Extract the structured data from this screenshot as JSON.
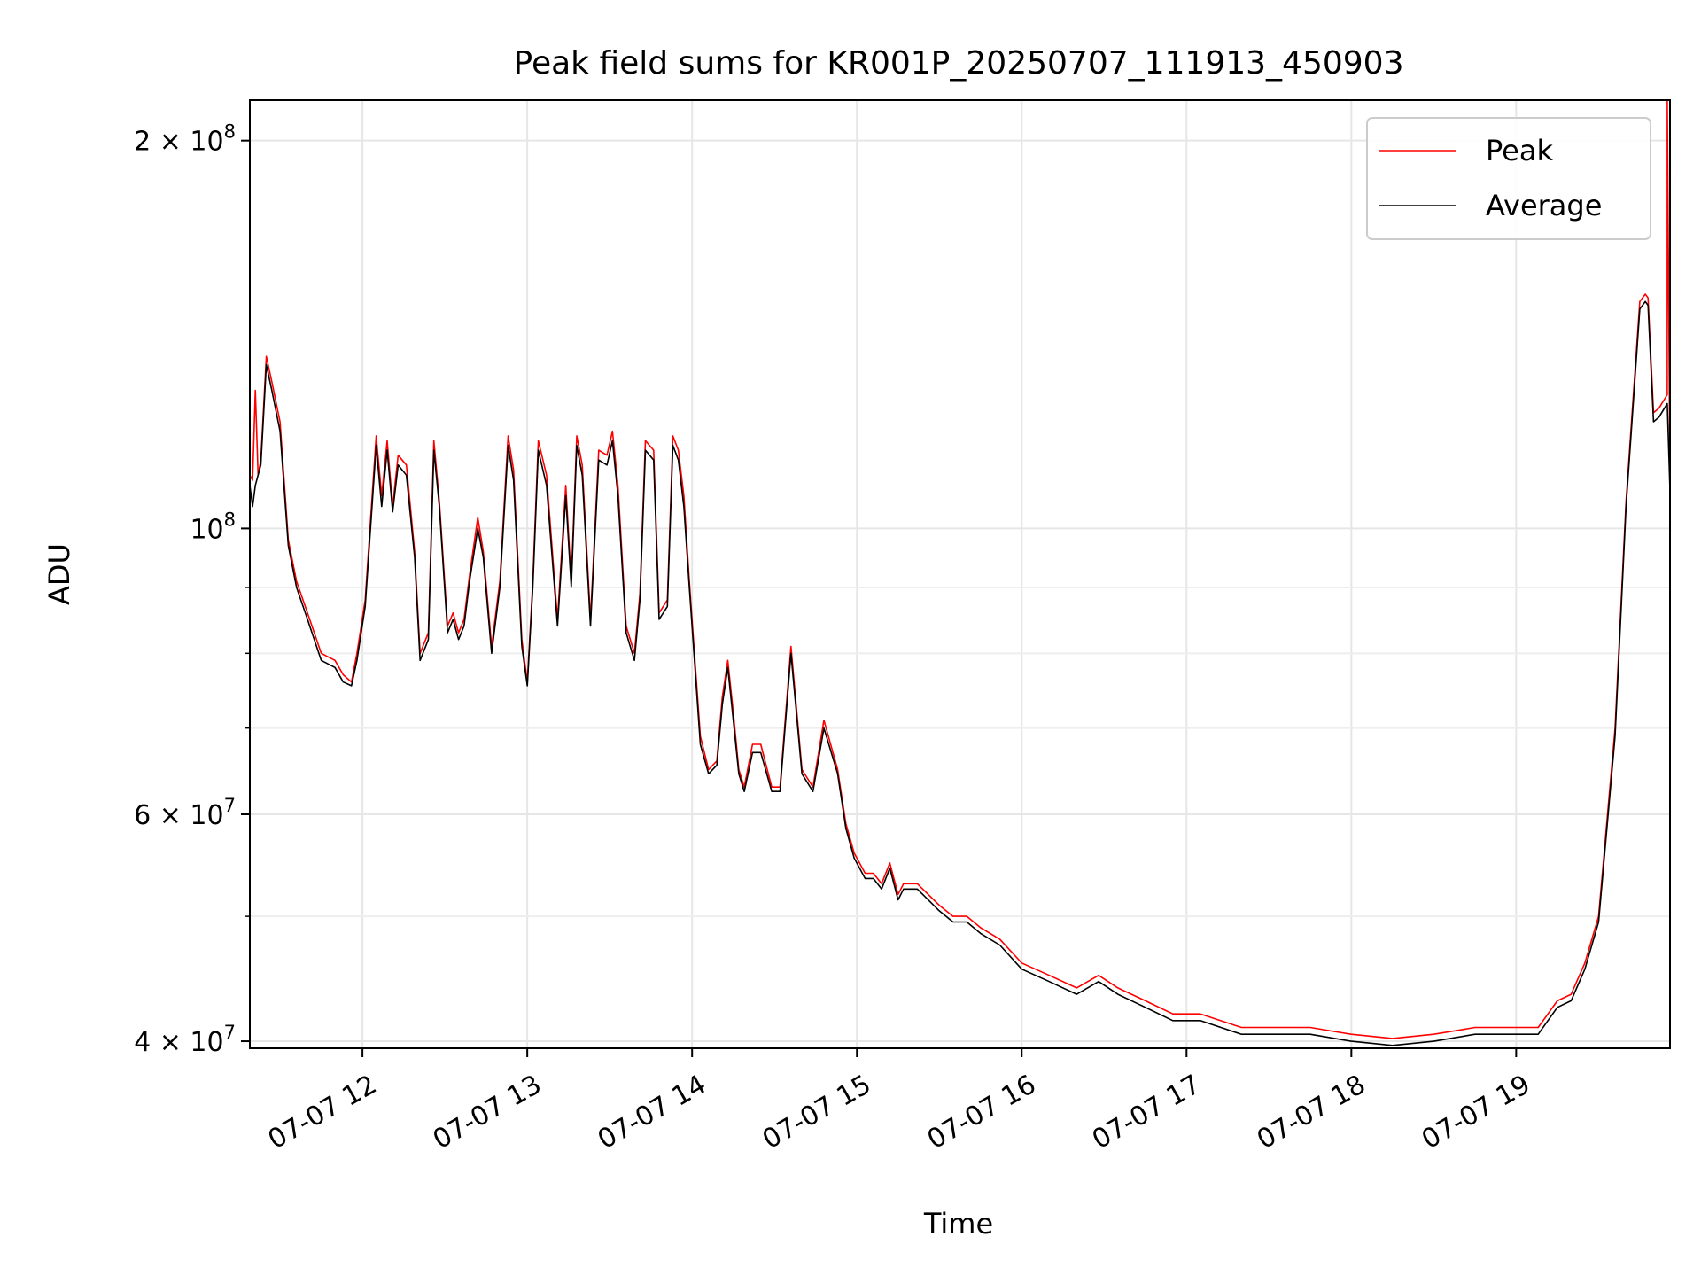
{
  "chart_data": {
    "type": "line",
    "title": "Peak field sums for KR001P_20250707_111913_450903",
    "xlabel": "Time",
    "ylabel": "ADU",
    "yscale": "log",
    "xlim": [
      "2025-07-07 11:19",
      "2025-07-07 19:56"
    ],
    "ylim": [
      39500000,
      215000000
    ],
    "x_ticks": [
      {
        "value": "2025-07-07 12:00",
        "label": "07-07 12"
      },
      {
        "value": "2025-07-07 13:00",
        "label": "07-07 13"
      },
      {
        "value": "2025-07-07 14:00",
        "label": "07-07 14"
      },
      {
        "value": "2025-07-07 15:00",
        "label": "07-07 15"
      },
      {
        "value": "2025-07-07 16:00",
        "label": "07-07 16"
      },
      {
        "value": "2025-07-07 17:00",
        "label": "07-07 17"
      },
      {
        "value": "2025-07-07 18:00",
        "label": "07-07 18"
      },
      {
        "value": "2025-07-07 19:00",
        "label": "07-07 19"
      }
    ],
    "y_ticks": [
      {
        "value": 40000000,
        "base": "4",
        "exp": "7"
      },
      {
        "value": 60000000,
        "base": "6",
        "exp": "7"
      },
      {
        "value": 100000000,
        "base": "",
        "exp": "8"
      },
      {
        "value": 200000000,
        "base": "2",
        "exp": "8"
      }
    ],
    "y_minor_ticks": [
      50000000,
      70000000,
      80000000,
      90000000
    ],
    "grid": true,
    "legend_position": "top-right",
    "series": [
      {
        "name": "Peak",
        "color": "#ff0000",
        "x": [
          "2025-07-07 11:19",
          "2025-07-07 11:20",
          "2025-07-07 11:21",
          "2025-07-07 11:22",
          "2025-07-07 11:23",
          "2025-07-07 11:25",
          "2025-07-07 11:27",
          "2025-07-07 11:30",
          "2025-07-07 11:33",
          "2025-07-07 11:36",
          "2025-07-07 11:40",
          "2025-07-07 11:45",
          "2025-07-07 11:50",
          "2025-07-07 11:53",
          "2025-07-07 11:56",
          "2025-07-07 11:58",
          "2025-07-07 12:01",
          "2025-07-07 12:05",
          "2025-07-07 12:07",
          "2025-07-07 12:09",
          "2025-07-07 12:11",
          "2025-07-07 12:13",
          "2025-07-07 12:16",
          "2025-07-07 12:19",
          "2025-07-07 12:21",
          "2025-07-07 12:24",
          "2025-07-07 12:26",
          "2025-07-07 12:28",
          "2025-07-07 12:31",
          "2025-07-07 12:33",
          "2025-07-07 12:35",
          "2025-07-07 12:37",
          "2025-07-07 12:39",
          "2025-07-07 12:42",
          "2025-07-07 12:44",
          "2025-07-07 12:47",
          "2025-07-07 12:50",
          "2025-07-07 12:53",
          "2025-07-07 12:55",
          "2025-07-07 12:58",
          "2025-07-07 13:00",
          "2025-07-07 13:02",
          "2025-07-07 13:04",
          "2025-07-07 13:07",
          "2025-07-07 13:11",
          "2025-07-07 13:14",
          "2025-07-07 13:16",
          "2025-07-07 13:18",
          "2025-07-07 13:20",
          "2025-07-07 13:23",
          "2025-07-07 13:26",
          "2025-07-07 13:29",
          "2025-07-07 13:31",
          "2025-07-07 13:33",
          "2025-07-07 13:36",
          "2025-07-07 13:39",
          "2025-07-07 13:41",
          "2025-07-07 13:43",
          "2025-07-07 13:46",
          "2025-07-07 13:48",
          "2025-07-07 13:51",
          "2025-07-07 13:53",
          "2025-07-07 13:55",
          "2025-07-07 13:57",
          "2025-07-07 13:59",
          "2025-07-07 14:03",
          "2025-07-07 14:06",
          "2025-07-07 14:09",
          "2025-07-07 14:11",
          "2025-07-07 14:13",
          "2025-07-07 14:15",
          "2025-07-07 14:17",
          "2025-07-07 14:19",
          "2025-07-07 14:22",
          "2025-07-07 14:25",
          "2025-07-07 14:29",
          "2025-07-07 14:32",
          "2025-07-07 14:36",
          "2025-07-07 14:40",
          "2025-07-07 14:44",
          "2025-07-07 14:48",
          "2025-07-07 14:53",
          "2025-07-07 14:56",
          "2025-07-07 14:59",
          "2025-07-07 15:03",
          "2025-07-07 15:06",
          "2025-07-07 15:09",
          "2025-07-07 15:12",
          "2025-07-07 15:15",
          "2025-07-07 15:17",
          "2025-07-07 15:22",
          "2025-07-07 15:30",
          "2025-07-07 15:35",
          "2025-07-07 15:40",
          "2025-07-07 15:45",
          "2025-07-07 15:52",
          "2025-07-07 16:00",
          "2025-07-07 16:10",
          "2025-07-07 16:20",
          "2025-07-07 16:28",
          "2025-07-07 16:35",
          "2025-07-07 16:45",
          "2025-07-07 16:55",
          "2025-07-07 17:05",
          "2025-07-07 17:20",
          "2025-07-07 17:30",
          "2025-07-07 17:45",
          "2025-07-07 18:00",
          "2025-07-07 18:15",
          "2025-07-07 18:30",
          "2025-07-07 18:45",
          "2025-07-07 18:55",
          "2025-07-07 19:00",
          "2025-07-07 19:08",
          "2025-07-07 19:15",
          "2025-07-07 19:20",
          "2025-07-07 19:25",
          "2025-07-07 19:30",
          "2025-07-07 19:36",
          "2025-07-07 19:40",
          "2025-07-07 19:45",
          "2025-07-07 19:47",
          "2025-07-07 19:48",
          "2025-07-07 19:50",
          "2025-07-07 19:52",
          "2025-07-07 19:54",
          "2025-07-07 19:55",
          "2025-07-07 19:55",
          "2025-07-07 19:56"
        ],
        "values": [
          110000000,
          109000000,
          128000000,
          110000000,
          113000000,
          136000000,
          130000000,
          121000000,
          98000000,
          91000000,
          86000000,
          80000000,
          79000000,
          77000000,
          76000000,
          80000000,
          88000000,
          118000000,
          106000000,
          117000000,
          104000000,
          114000000,
          112000000,
          96000000,
          80000000,
          83000000,
          117000000,
          105000000,
          84000000,
          86000000,
          83000000,
          85000000,
          92000000,
          102000000,
          96000000,
          81000000,
          91000000,
          118000000,
          111000000,
          82000000,
          76000000,
          91000000,
          117000000,
          110000000,
          85000000,
          108000000,
          91000000,
          118000000,
          112000000,
          85000000,
          115000000,
          114000000,
          119000000,
          108000000,
          84000000,
          80000000,
          89000000,
          117000000,
          115000000,
          86000000,
          88000000,
          118000000,
          115000000,
          106000000,
          91000000,
          69000000,
          65000000,
          66000000,
          74000000,
          79000000,
          72000000,
          65000000,
          63000000,
          68000000,
          68000000,
          63000000,
          63000000,
          81000000,
          65000000,
          63000000,
          71000000,
          65000000,
          59000000,
          56000000,
          54000000,
          54000000,
          53000000,
          55000000,
          52000000,
          53000000,
          53000000,
          51000000,
          50000000,
          50000000,
          49000000,
          48000000,
          46000000,
          45000000,
          44000000,
          45000000,
          44000000,
          43000000,
          42000000,
          42000000,
          41000000,
          41000000,
          41000000,
          40500000,
          40200000,
          40500000,
          41000000,
          41000000,
          41000000,
          41000000,
          43000000,
          43500000,
          46000000,
          50000000,
          70000000,
          105000000,
          150000000,
          152000000,
          151000000,
          123000000,
          124000000,
          126000000,
          127000000,
          215000000,
          108000000
        ],
        "spike": {
          "x": "2025-07-07 19:55",
          "value": 215000000
        }
      },
      {
        "name": "Average",
        "color": "#000000",
        "x": [
          "2025-07-07 11:19",
          "2025-07-07 11:20",
          "2025-07-07 11:21",
          "2025-07-07 11:22",
          "2025-07-07 11:23",
          "2025-07-07 11:25",
          "2025-07-07 11:27",
          "2025-07-07 11:30",
          "2025-07-07 11:33",
          "2025-07-07 11:36",
          "2025-07-07 11:40",
          "2025-07-07 11:45",
          "2025-07-07 11:50",
          "2025-07-07 11:53",
          "2025-07-07 11:56",
          "2025-07-07 11:58",
          "2025-07-07 12:01",
          "2025-07-07 12:05",
          "2025-07-07 12:07",
          "2025-07-07 12:09",
          "2025-07-07 12:11",
          "2025-07-07 12:13",
          "2025-07-07 12:16",
          "2025-07-07 12:19",
          "2025-07-07 12:21",
          "2025-07-07 12:24",
          "2025-07-07 12:26",
          "2025-07-07 12:28",
          "2025-07-07 12:31",
          "2025-07-07 12:33",
          "2025-07-07 12:35",
          "2025-07-07 12:37",
          "2025-07-07 12:39",
          "2025-07-07 12:42",
          "2025-07-07 12:44",
          "2025-07-07 12:47",
          "2025-07-07 12:50",
          "2025-07-07 12:53",
          "2025-07-07 12:55",
          "2025-07-07 12:58",
          "2025-07-07 13:00",
          "2025-07-07 13:02",
          "2025-07-07 13:04",
          "2025-07-07 13:07",
          "2025-07-07 13:11",
          "2025-07-07 13:14",
          "2025-07-07 13:16",
          "2025-07-07 13:18",
          "2025-07-07 13:20",
          "2025-07-07 13:23",
          "2025-07-07 13:26",
          "2025-07-07 13:29",
          "2025-07-07 13:31",
          "2025-07-07 13:33",
          "2025-07-07 13:36",
          "2025-07-07 13:39",
          "2025-07-07 13:41",
          "2025-07-07 13:43",
          "2025-07-07 13:46",
          "2025-07-07 13:48",
          "2025-07-07 13:51",
          "2025-07-07 13:53",
          "2025-07-07 13:55",
          "2025-07-07 13:57",
          "2025-07-07 13:59",
          "2025-07-07 14:03",
          "2025-07-07 14:06",
          "2025-07-07 14:09",
          "2025-07-07 14:11",
          "2025-07-07 14:13",
          "2025-07-07 14:15",
          "2025-07-07 14:17",
          "2025-07-07 14:19",
          "2025-07-07 14:22",
          "2025-07-07 14:25",
          "2025-07-07 14:29",
          "2025-07-07 14:32",
          "2025-07-07 14:36",
          "2025-07-07 14:40",
          "2025-07-07 14:44",
          "2025-07-07 14:48",
          "2025-07-07 14:53",
          "2025-07-07 14:56",
          "2025-07-07 14:59",
          "2025-07-07 15:03",
          "2025-07-07 15:06",
          "2025-07-07 15:09",
          "2025-07-07 15:12",
          "2025-07-07 15:15",
          "2025-07-07 15:17",
          "2025-07-07 15:22",
          "2025-07-07 15:30",
          "2025-07-07 15:35",
          "2025-07-07 15:40",
          "2025-07-07 15:45",
          "2025-07-07 15:52",
          "2025-07-07 16:00",
          "2025-07-07 16:10",
          "2025-07-07 16:20",
          "2025-07-07 16:28",
          "2025-07-07 16:35",
          "2025-07-07 16:45",
          "2025-07-07 16:55",
          "2025-07-07 17:05",
          "2025-07-07 17:20",
          "2025-07-07 17:30",
          "2025-07-07 17:45",
          "2025-07-07 18:00",
          "2025-07-07 18:15",
          "2025-07-07 18:30",
          "2025-07-07 18:45",
          "2025-07-07 18:55",
          "2025-07-07 19:00",
          "2025-07-07 19:08",
          "2025-07-07 19:15",
          "2025-07-07 19:20",
          "2025-07-07 19:25",
          "2025-07-07 19:30",
          "2025-07-07 19:36",
          "2025-07-07 19:40",
          "2025-07-07 19:45",
          "2025-07-07 19:47",
          "2025-07-07 19:48",
          "2025-07-07 19:50",
          "2025-07-07 19:52",
          "2025-07-07 19:54",
          "2025-07-07 19:55",
          "2025-07-07 19:56"
        ],
        "values": [
          108000000,
          104000000,
          108000000,
          110000000,
          112000000,
          134000000,
          128000000,
          119000000,
          97000000,
          90000000,
          85000000,
          79000000,
          78000000,
          76000000,
          75500000,
          79000000,
          87000000,
          116000000,
          104000000,
          115000000,
          103000000,
          112000000,
          110000000,
          95000000,
          79000000,
          82000000,
          115000000,
          104000000,
          83000000,
          85000000,
          82000000,
          84000000,
          91000000,
          100000000,
          95000000,
          80000000,
          90000000,
          116000000,
          109000000,
          81000000,
          75500000,
          90000000,
          115000000,
          108000000,
          84000000,
          106000000,
          90000000,
          116000000,
          110000000,
          84000000,
          113000000,
          112000000,
          117000000,
          106000000,
          83000000,
          79000000,
          88000000,
          115000000,
          113000000,
          85000000,
          87000000,
          116000000,
          113000000,
          104000000,
          90000000,
          68000000,
          64500000,
          65500000,
          73000000,
          78000000,
          71000000,
          64500000,
          62500000,
          67000000,
          67000000,
          62500000,
          62500000,
          80000000,
          64500000,
          62500000,
          70000000,
          64500000,
          58500000,
          55500000,
          53500000,
          53500000,
          52500000,
          54500000,
          51500000,
          52500000,
          52500000,
          50500000,
          49500000,
          49500000,
          48500000,
          47500000,
          45500000,
          44500000,
          43500000,
          44500000,
          43500000,
          42500000,
          41500000,
          41500000,
          40500000,
          40500000,
          40500000,
          40000000,
          39700000,
          40000000,
          40500000,
          40500000,
          40500000,
          40500000,
          42500000,
          43000000,
          45500000,
          49500000,
          69000000,
          104000000,
          148000000,
          150000000,
          149000000,
          121000000,
          122000000,
          124000000,
          125000000,
          107000000
        ]
      }
    ]
  }
}
